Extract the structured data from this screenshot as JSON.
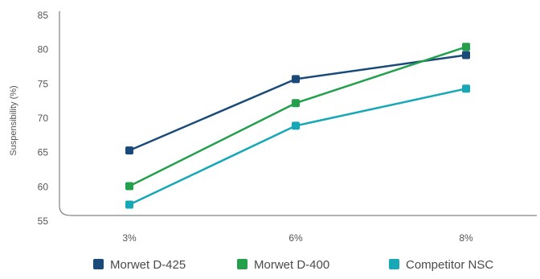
{
  "chart_data": {
    "type": "line",
    "categories": [
      "3%",
      "6%",
      "8%"
    ],
    "ylabel": "Suspensibility (%)",
    "ylim": [
      55,
      85
    ],
    "yticks": [
      55,
      60,
      65,
      70,
      75,
      80,
      85
    ],
    "grid": false,
    "legend_position": "bottom",
    "series": [
      {
        "name": "Morwet D-425",
        "color": "#1a4a7a",
        "values": [
          65.3,
          75.7,
          79.2
        ]
      },
      {
        "name": "Morwet D-400",
        "color": "#22a04b",
        "values": [
          60.1,
          72.2,
          80.4
        ]
      },
      {
        "name": "Competitor NSC",
        "color": "#17a8b8",
        "values": [
          57.4,
          68.9,
          74.3
        ]
      }
    ]
  }
}
